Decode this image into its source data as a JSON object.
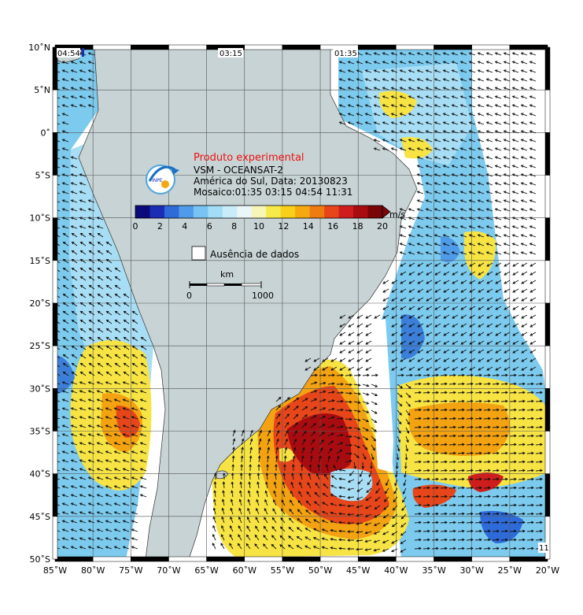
{
  "map": {
    "title_experimental": "Produto experimental",
    "product": "VSM - OCEANSAT-2",
    "region_date": "América do Sul, Data: 20130823",
    "mosaic": "Mosaico:01:35 03:15 04:54 11:31",
    "logo_text": "INPE",
    "no_data_label": "Ausência de dados",
    "scale_unit": "km",
    "scale_start": "0",
    "scale_end": "1000",
    "corner_label": "11",
    "colors": {
      "land": "#c7d3d5",
      "ocean": "#ffffff",
      "grid": "#555555",
      "accent_red": "#ee1111"
    }
  },
  "pass_labels": [
    "04:54",
    "03:15",
    "01:35"
  ],
  "colorbar": {
    "unit": "m/s",
    "ticks": [
      "0",
      "2",
      "4",
      "6",
      "8",
      "10",
      "12",
      "14",
      "16",
      "18",
      "20"
    ],
    "range": [
      0,
      20
    ],
    "colors": [
      "#0a0a7a",
      "#1b2db4",
      "#2f6bd8",
      "#4f9be9",
      "#79c3f2",
      "#a3dcf6",
      "#c8ecf8",
      "#eaf6f8",
      "#f7f5b8",
      "#f6ea4a",
      "#f8cf1a",
      "#f5a80f",
      "#ef7c12",
      "#e6461a",
      "#cf1d1d",
      "#a80c10",
      "#7a0508"
    ]
  },
  "axes": {
    "lat_labels": [
      "10˚N",
      "5˚N",
      "0˚",
      "5˚S",
      "10˚S",
      "15˚S",
      "20˚S",
      "25˚S",
      "30˚S",
      "35˚S",
      "40˚S",
      "45˚S",
      "50˚S"
    ],
    "lon_labels": [
      "85˚W",
      "80˚W",
      "75˚W",
      "70˚W",
      "65˚W",
      "60˚W",
      "55˚W",
      "50˚W",
      "45˚W",
      "40˚W",
      "35˚W",
      "30˚W",
      "25˚W",
      "20˚W"
    ]
  },
  "chart_data": {
    "type": "heatmap",
    "title": "",
    "xlabel": "",
    "ylabel": "",
    "xlim": [
      -85,
      -20
    ],
    "ylim": [
      -50,
      10
    ],
    "grid": true,
    "colorbar_unit": "m/s",
    "colorbar_range": [
      0,
      20
    ]
  }
}
